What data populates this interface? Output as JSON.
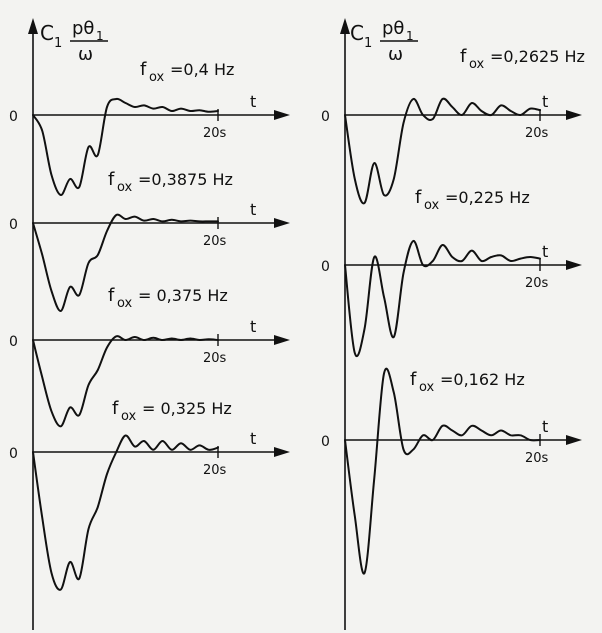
{
  "chart_data": [
    {
      "type": "line",
      "ylabel": "C1 pθ1/ω",
      "ylabel_parts": {
        "c": "C",
        "c_sub": "1",
        "num": "pθ",
        "num_sub": "1",
        "den": "ω"
      },
      "xlabel": "t",
      "time_tick": "20s",
      "zero_label": "0",
      "series": [
        {
          "name": "fox = 0,4 Hz",
          "label_f": "f",
          "label_sub": "ox",
          "label_val": "=0,4 Hz",
          "x": [
            0,
            1,
            2,
            3,
            4,
            5,
            6,
            7,
            8,
            9,
            10,
            11,
            12,
            13,
            14,
            15,
            16,
            17,
            18,
            19,
            20
          ],
          "y": [
            0,
            -0.2,
            -0.75,
            -1.0,
            -0.8,
            -0.9,
            -0.4,
            -0.5,
            0.1,
            0.2,
            0.15,
            0.1,
            0.12,
            0.08,
            0.1,
            0.05,
            0.08,
            0.05,
            0.06,
            0.04,
            0.05
          ]
        },
        {
          "name": "fox = 0,3875 Hz",
          "label_f": "f",
          "label_sub": "ox",
          "label_val": "=0,3875 Hz",
          "x": [
            0,
            1,
            2,
            3,
            4,
            5,
            6,
            7,
            8,
            9,
            10,
            11,
            12,
            13,
            14,
            15,
            16,
            17,
            18,
            19,
            20
          ],
          "y": [
            0,
            -0.4,
            -0.85,
            -1.1,
            -0.8,
            -0.9,
            -0.5,
            -0.4,
            -0.1,
            0.1,
            0.05,
            0.08,
            0.03,
            0.05,
            0.02,
            0.04,
            0.02,
            0.03,
            0.02,
            0.02,
            0.02
          ]
        },
        {
          "name": "fox = 0,375 Hz",
          "label_f": "f",
          "label_sub": "ox",
          "label_val": "= 0,375 Hz",
          "x": [
            0,
            1,
            2,
            3,
            4,
            5,
            6,
            7,
            8,
            9,
            10,
            11,
            12,
            13,
            14,
            15,
            16,
            17,
            18,
            19,
            20
          ],
          "y": [
            0,
            -0.5,
            -0.95,
            -1.15,
            -0.9,
            -1.0,
            -0.6,
            -0.4,
            -0.1,
            0.05,
            0.0,
            0.04,
            0.0,
            0.03,
            0.0,
            0.02,
            0.0,
            0.02,
            0.0,
            0.01,
            0.0
          ]
        },
        {
          "name": "fox = 0,325 Hz",
          "label_f": "f",
          "label_sub": "ox",
          "label_val": "= 0,325 Hz",
          "x": [
            0,
            1,
            2,
            3,
            4,
            5,
            6,
            7,
            8,
            9,
            10,
            11,
            12,
            13,
            14,
            15,
            16,
            17,
            18,
            19,
            20
          ],
          "y": [
            0,
            -0.6,
            -1.1,
            -1.25,
            -1.0,
            -1.15,
            -0.7,
            -0.5,
            -0.2,
            0.0,
            0.15,
            0.05,
            0.1,
            0.02,
            0.1,
            0.02,
            0.08,
            0.02,
            0.06,
            0.02,
            0.04
          ]
        }
      ]
    },
    {
      "type": "line",
      "ylabel": "C1 pθ1/ω",
      "ylabel_parts": {
        "c": "C",
        "c_sub": "1",
        "num": "pθ",
        "num_sub": "1",
        "den": "ω"
      },
      "xlabel": "t",
      "time_tick": "20s",
      "zero_label": "0",
      "series": [
        {
          "name": "fox = 0,2625 Hz",
          "label_f": "f",
          "label_sub": "ox",
          "label_val": "=0,2625 Hz",
          "x": [
            0,
            1,
            2,
            3,
            4,
            5,
            6,
            7,
            8,
            9,
            10,
            11,
            12,
            13,
            14,
            15,
            16,
            17,
            18,
            19,
            20
          ],
          "y": [
            0,
            -0.8,
            -1.1,
            -0.6,
            -1.0,
            -0.8,
            -0.1,
            0.2,
            0.0,
            -0.05,
            0.2,
            0.1,
            0.0,
            0.15,
            0.05,
            0.0,
            0.12,
            0.05,
            0.0,
            0.08,
            0.06
          ]
        },
        {
          "name": "fox = 0,225 Hz",
          "label_f": "f",
          "label_sub": "ox",
          "label_val": "=0,225 Hz",
          "x": [
            0,
            1,
            2,
            3,
            4,
            5,
            6,
            7,
            8,
            9,
            10,
            11,
            12,
            13,
            14,
            15,
            16,
            17,
            18,
            19,
            20
          ],
          "y": [
            0,
            -1.1,
            -0.8,
            0.1,
            -0.4,
            -0.9,
            -0.1,
            0.3,
            0.0,
            0.05,
            0.25,
            0.1,
            0.05,
            0.18,
            0.05,
            0.1,
            0.12,
            0.05,
            0.08,
            0.1,
            0.08
          ]
        },
        {
          "name": "fox = 0,162 Hz",
          "label_f": "f",
          "label_sub": "ox",
          "label_val": "=0,162 Hz",
          "x": [
            0,
            1,
            2,
            3,
            4,
            5,
            6,
            7,
            8,
            9,
            10,
            11,
            12,
            13,
            14,
            15,
            16,
            17,
            18,
            19,
            20
          ],
          "y": [
            0,
            -0.8,
            -1.4,
            -0.4,
            0.7,
            0.5,
            -0.1,
            -0.1,
            0.05,
            0.0,
            0.15,
            0.1,
            0.05,
            0.15,
            0.1,
            0.05,
            0.1,
            0.05,
            0.05,
            0.0,
            0.0
          ]
        }
      ]
    }
  ]
}
